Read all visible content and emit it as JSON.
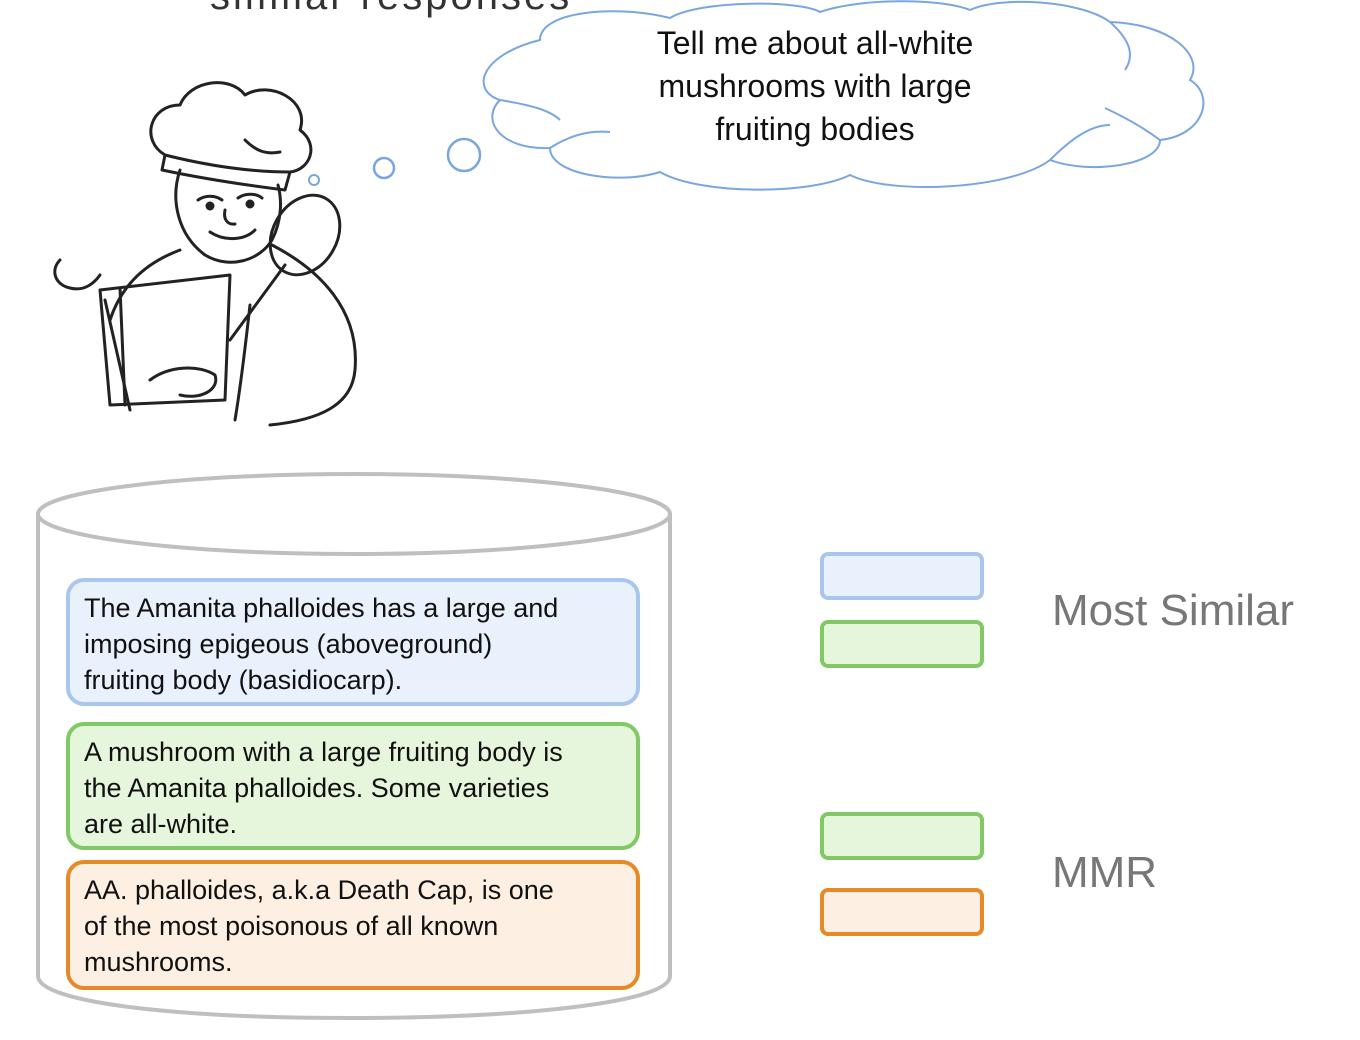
{
  "header": {
    "title_partial": "similar responses"
  },
  "thought": {
    "text_lines": [
      "Tell me about all-white",
      "mushrooms with large",
      "fruiting bodies"
    ]
  },
  "documents": [
    {
      "lines": [
        "The Amanita phalloides has a large and",
        "imposing epigeous (aboveground)",
        "fruiting body (basidiocarp)."
      ],
      "color": "#a9c6ee"
    },
    {
      "lines": [
        "A mushroom with a large fruiting body is",
        "the Amanita phalloides. Some varieties",
        "are all-white."
      ],
      "color": "#80c965"
    },
    {
      "lines": [
        "AA. phalloides, a.k.a Death Cap, is one",
        "of the most poisonous of all known",
        "mushrooms."
      ],
      "color": "#e58a26"
    }
  ],
  "legend": {
    "most_similar_label": "Most Similar",
    "mmr_label": "MMR"
  },
  "colors": {
    "blue": "#a9c6ee",
    "green": "#80c965",
    "orange": "#e58a26"
  }
}
